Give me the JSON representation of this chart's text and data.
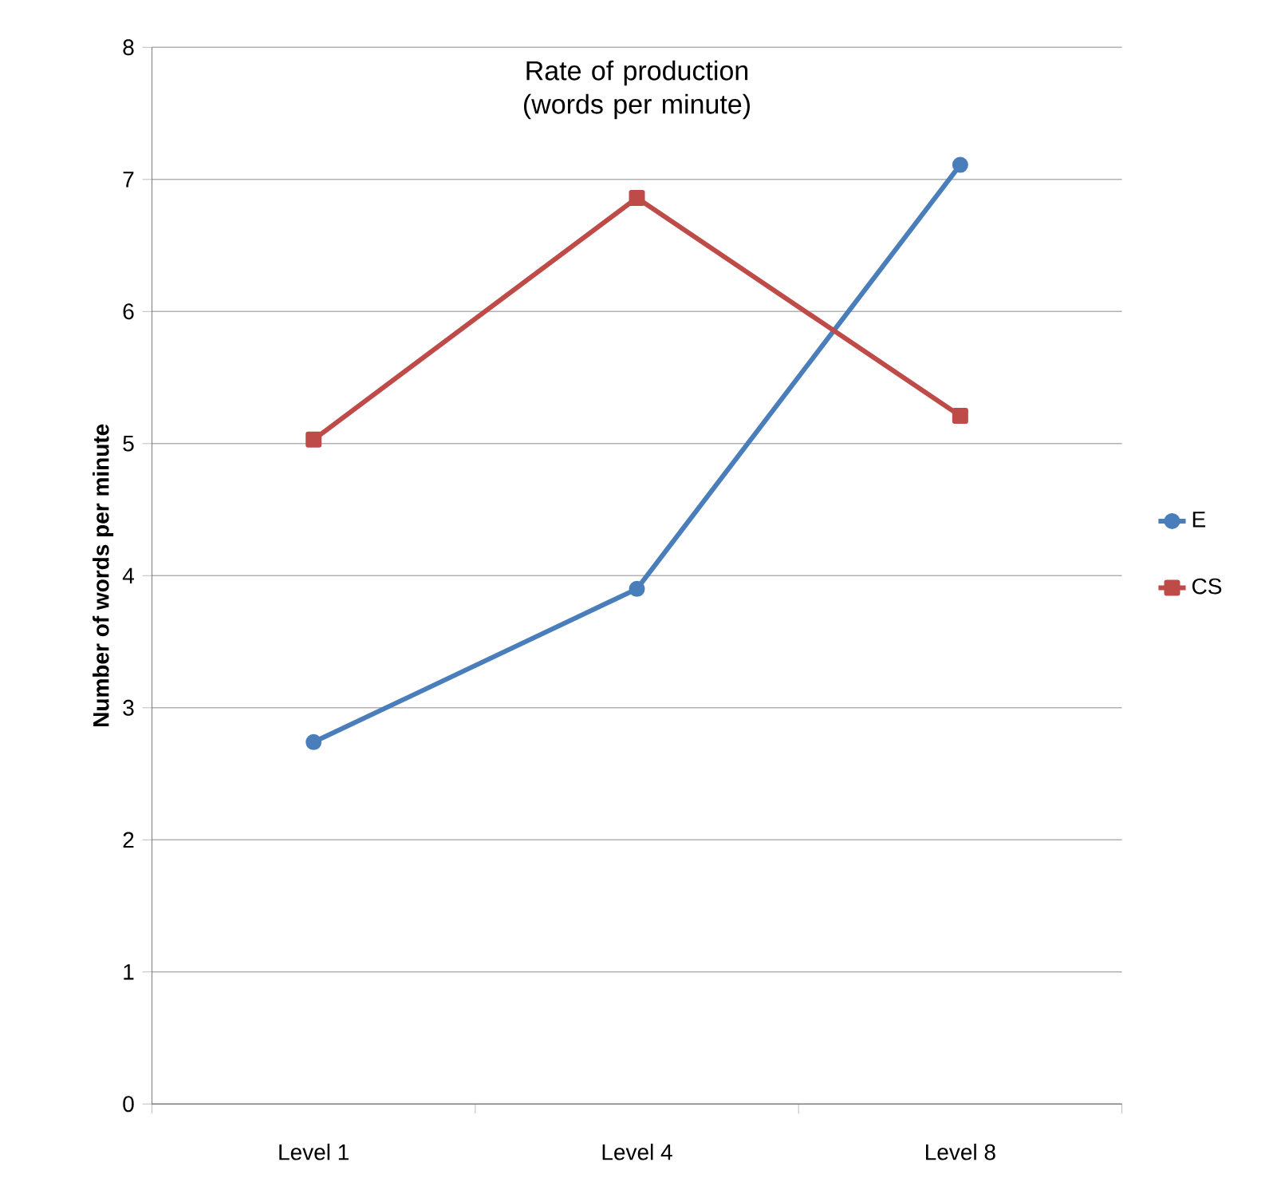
{
  "chart_data": {
    "type": "line",
    "title": "Rate of production (words per minute)",
    "ylabel": "Number of words per minute",
    "categories": [
      "Level 1",
      "Level 4",
      "Level 8"
    ],
    "series": [
      {
        "name": "E",
        "color": "#4a7ebb",
        "marker": "circle",
        "values": [
          2.74,
          3.9,
          7.11
        ]
      },
      {
        "name": "CS",
        "color": "#be4b48",
        "marker": "square",
        "values": [
          5.03,
          6.86,
          5.21
        ]
      }
    ],
    "ylim": [
      0,
      8
    ],
    "yticks": [
      0,
      1,
      2,
      3,
      4,
      5,
      6,
      7,
      8
    ],
    "grid": "y",
    "legend": "right",
    "line_style": "solid"
  }
}
